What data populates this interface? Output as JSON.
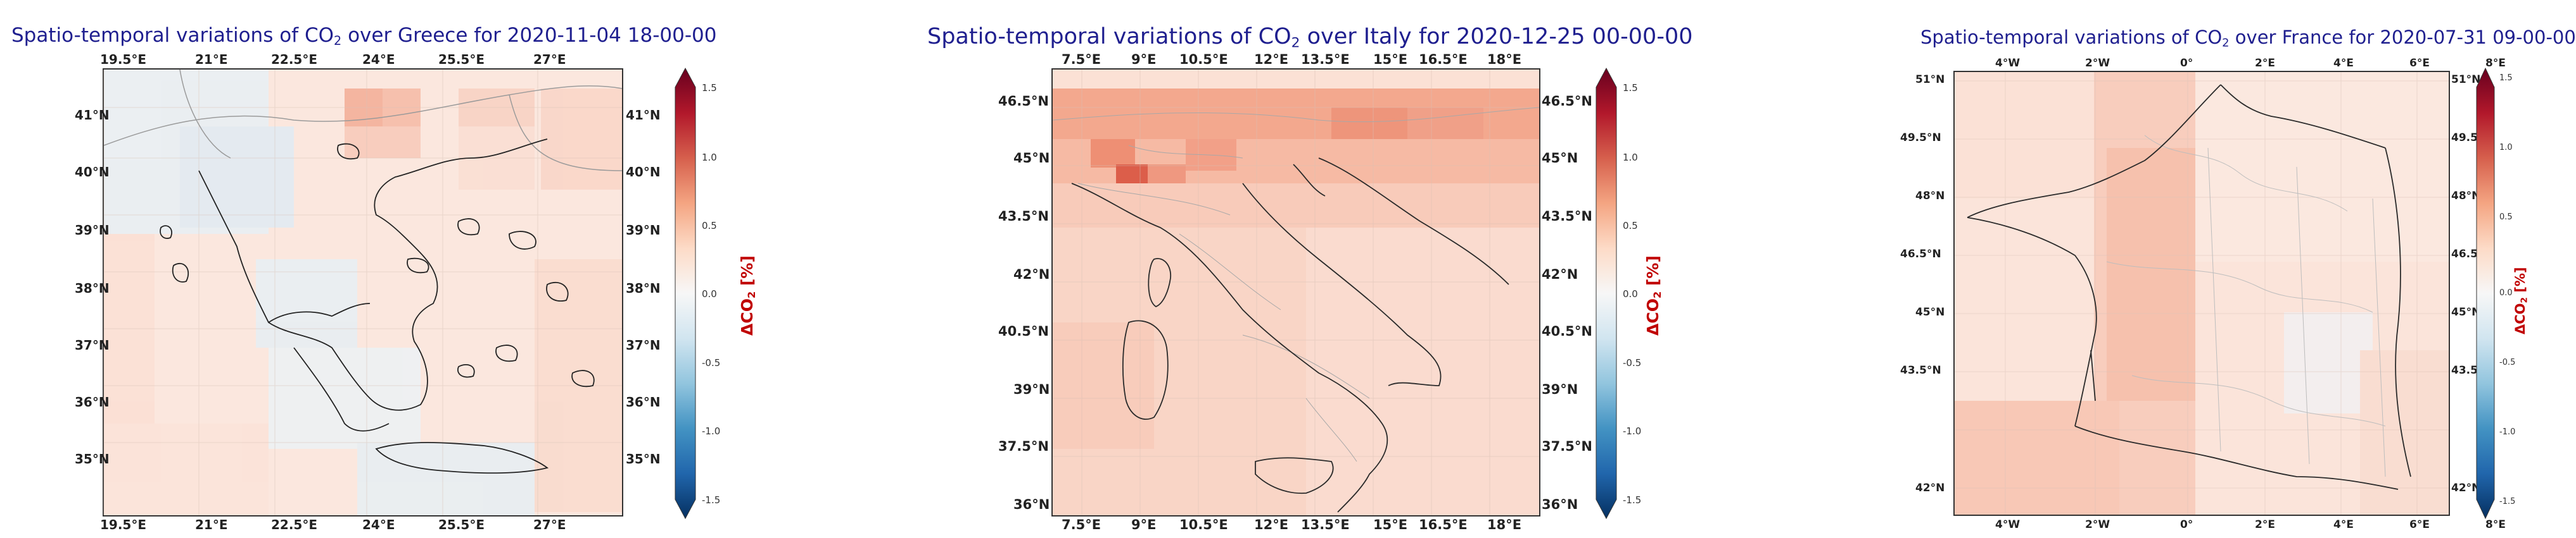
{
  "colors": {
    "title": "#1f1f8f",
    "colorbar_label": "#c00000",
    "cmap": [
      "#053061",
      "#2166ac",
      "#4393c3",
      "#92c5de",
      "#d1e5f0",
      "#f7f7f7",
      "#fddbc7",
      "#f4a582",
      "#d6604d",
      "#b2182b",
      "#67001f"
    ]
  },
  "panels": [
    {
      "title_prefix": "Spatio-temporal variations of CO",
      "title_sub": "2",
      "title_suffix": " over Greece for 2020-11-04 18-00-00",
      "country": "Greece",
      "timestamp": "2020-11-04 18-00-00",
      "lon_ticks": [
        "19.5°E",
        "21°E",
        "22.5°E",
        "24°E",
        "25.5°E",
        "27°E"
      ],
      "lat_ticks": [
        "41°N",
        "40°N",
        "39°N",
        "38°N",
        "37°N",
        "36°N",
        "35°N"
      ],
      "colorbar": {
        "ticks": [
          "1.5",
          "1.0",
          "0.5",
          "0.0",
          "-0.5",
          "-1.0",
          "-1.5"
        ],
        "label_delta": "ΔCO",
        "label_sub": "2",
        "label_unit": " [%]",
        "range": [
          -1.5,
          1.5
        ]
      }
    },
    {
      "title_prefix": "Spatio-temporal variations of CO",
      "title_sub": "2",
      "title_suffix": " over Italy for 2020-12-25 00-00-00",
      "country": "Italy",
      "timestamp": "2020-12-25 00-00-00",
      "lon_ticks": [
        "7.5°E",
        "9°E",
        "10.5°E",
        "12°E",
        "13.5°E",
        "15°E",
        "16.5°E",
        "18°E"
      ],
      "lat_ticks": [
        "46.5°N",
        "45°N",
        "43.5°N",
        "42°N",
        "40.5°N",
        "39°N",
        "37.5°N",
        "36°N"
      ],
      "colorbar": {
        "ticks": [
          "1.5",
          "1.0",
          "0.5",
          "0.0",
          "-0.5",
          "-1.0",
          "-1.5"
        ],
        "label_delta": "ΔCO",
        "label_sub": "2",
        "label_unit": " [%]",
        "range": [
          -1.5,
          1.5
        ]
      }
    },
    {
      "title_prefix": "Spatio-temporal variations of CO",
      "title_sub": "2",
      "title_suffix": " over France for 2020-07-31 09-00-00",
      "country": "France",
      "timestamp": "2020-07-31 09-00-00",
      "lon_ticks": [
        "4°W",
        "2°W",
        "0°",
        "2°E",
        "4°E",
        "6°E",
        "8°E"
      ],
      "lat_ticks": [
        "51°N",
        "49.5°N",
        "48°N",
        "46.5°N",
        "45°N",
        "43.5°N",
        "42°N"
      ],
      "colorbar": {
        "ticks": [
          "1.5",
          "1.0",
          "0.5",
          "0.0",
          "-0.5",
          "-1.0",
          "-1.5"
        ],
        "label_delta": "ΔCO",
        "label_sub": "2",
        "label_unit": " [%]",
        "range": [
          -1.5,
          1.5
        ]
      }
    }
  ]
}
